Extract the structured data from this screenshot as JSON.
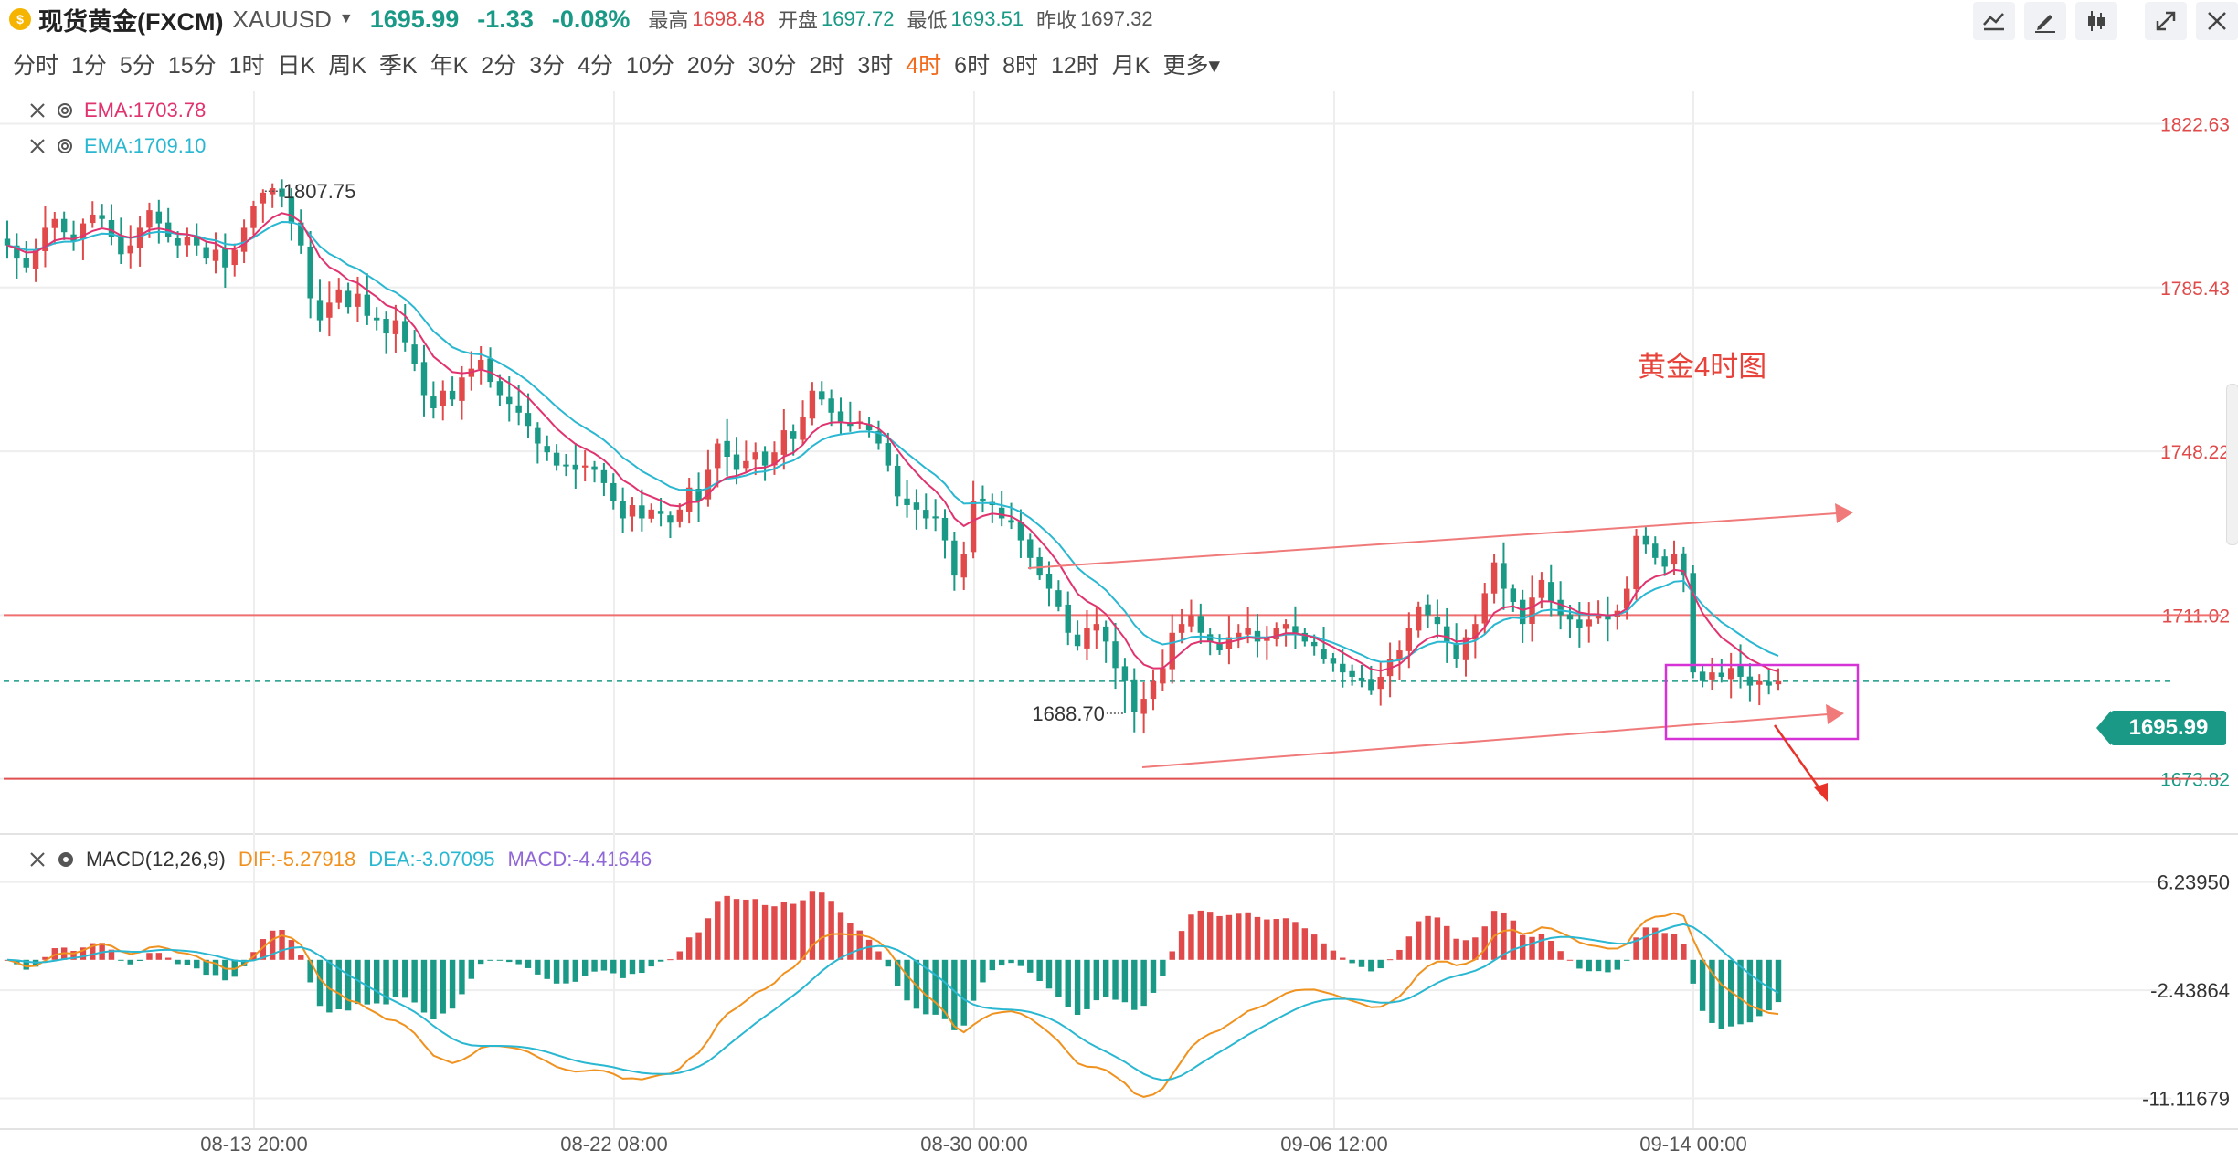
{
  "header": {
    "symbol_name": "现货黄金(FXCM)",
    "code": "XAUUSD",
    "price": "1695.99",
    "change": "-1.33",
    "change_pct": "-0.08%",
    "high_label": "最高",
    "high": "1698.48",
    "open_label": "开盘",
    "open": "1697.72",
    "low_label": "最低",
    "low": "1693.51",
    "prev_label": "昨收",
    "prev": "1697.32"
  },
  "toolbar_icons": [
    "indicator-icon",
    "draw-pen-icon",
    "candle-style-icon",
    "expand-icon",
    "close-icon"
  ],
  "timeframes": [
    "分时",
    "1分",
    "5分",
    "15分",
    "1时",
    "日K",
    "周K",
    "季K",
    "年K",
    "2分",
    "3分",
    "4分",
    "10分",
    "20分",
    "30分",
    "2时",
    "3时",
    "4时",
    "6时",
    "8时",
    "12时",
    "月K",
    "更多"
  ],
  "active_timeframe": "4时",
  "colors": {
    "up": "#e04a4a",
    "down": "#1a9a86",
    "ema_short": "#e0336f",
    "ema_long": "#2ab7d1",
    "dif": "#f0921f",
    "dea": "#2ab7d1",
    "macd": "#9067d6",
    "annotation": "#e8433a",
    "box": "#d633d6"
  },
  "legend": {
    "ema1": "EMA:1703.78",
    "ema2": "EMA:1709.10",
    "macd_name": "MACD(12,26,9)",
    "dif": "DIF:-5.27918",
    "dea": "DEA:-3.07095",
    "macd": "MACD:-4.41646"
  },
  "annotation": "黄金4时图",
  "current_price_tag": "1695.99",
  "chart_data": [
    {
      "type": "candlestick",
      "title": "",
      "y_axis_ticks": [
        "1822.63",
        "1785.43",
        "1748.22",
        "1711.02",
        "1673.82"
      ],
      "ylim": [
        1664,
        1830
      ],
      "x_axis_ticks": [
        "08-13 20:00",
        "08-22 08:00",
        "08-30 00:00",
        "09-06 12:00",
        "09-14 00:00"
      ],
      "point_labels": {
        "high": "1807.75",
        "low": "1688.70"
      },
      "horizontal_levels": [
        1711.02,
        1695.99,
        1673.82
      ],
      "closes": [
        1795,
        1792,
        1790,
        1794,
        1799,
        1801,
        1798,
        1796,
        1800,
        1802,
        1801,
        1797,
        1793,
        1795,
        1799,
        1803,
        1800,
        1797,
        1795,
        1797,
        1795,
        1792,
        1794,
        1790,
        1794,
        1799,
        1804,
        1807,
        1808,
        1806,
        1800,
        1795,
        1783,
        1778,
        1782,
        1785,
        1781,
        1784,
        1779,
        1778,
        1775,
        1778,
        1773,
        1768,
        1761,
        1758,
        1762,
        1760,
        1765,
        1767,
        1769,
        1764,
        1761,
        1759,
        1757,
        1754,
        1750,
        1748,
        1745,
        1745,
        1744,
        1745,
        1744,
        1741,
        1737,
        1733,
        1736,
        1733,
        1735,
        1734,
        1732,
        1735,
        1740,
        1737,
        1744,
        1750,
        1747,
        1744,
        1746,
        1748,
        1745,
        1748,
        1753,
        1751,
        1756,
        1762,
        1760,
        1757,
        1755,
        1754,
        1755,
        1753,
        1750,
        1745,
        1738,
        1736,
        1735,
        1733,
        1733,
        1728,
        1720,
        1725,
        1737,
        1737,
        1736,
        1733,
        1732,
        1728,
        1724,
        1720,
        1717,
        1713,
        1707,
        1704,
        1708,
        1709,
        1705,
        1699,
        1696,
        1689,
        1692,
        1696,
        1699,
        1707,
        1709,
        1711,
        1707,
        1705,
        1703,
        1706,
        1707,
        1708,
        1705,
        1706,
        1708,
        1709,
        1707,
        1705,
        1704,
        1701,
        1700,
        1698,
        1697,
        1696,
        1694,
        1697,
        1701,
        1703,
        1708,
        1713,
        1711,
        1709,
        1705,
        1701,
        1706,
        1709,
        1716,
        1723,
        1717,
        1714,
        1709,
        1715,
        1719,
        1714,
        1711,
        1710,
        1708,
        1710,
        1711,
        1710,
        1712,
        1717,
        1729,
        1727,
        1724,
        1722,
        1725,
        1720,
        1698,
        1696,
        1698,
        1697,
        1699,
        1697,
        1695,
        1696,
        1695,
        1696
      ],
      "series": [
        {
          "name": "EMA:1703.78",
          "color": "#e0336f"
        },
        {
          "name": "EMA:1709.10",
          "color": "#2ab7d1"
        }
      ]
    },
    {
      "type": "bar+line",
      "title": "MACD(12,26,9)",
      "y_axis_ticks": [
        "6.23950",
        "-2.43864",
        "-11.11679"
      ],
      "ylim": [
        -13.5,
        9
      ],
      "series": [
        {
          "name": "DIF",
          "color": "#f0921f",
          "value": "-5.27918"
        },
        {
          "name": "DEA",
          "color": "#2ab7d1",
          "value": "-3.07095"
        },
        {
          "name": "MACD",
          "color": "#9067d6",
          "value": "-4.41646"
        }
      ]
    }
  ]
}
